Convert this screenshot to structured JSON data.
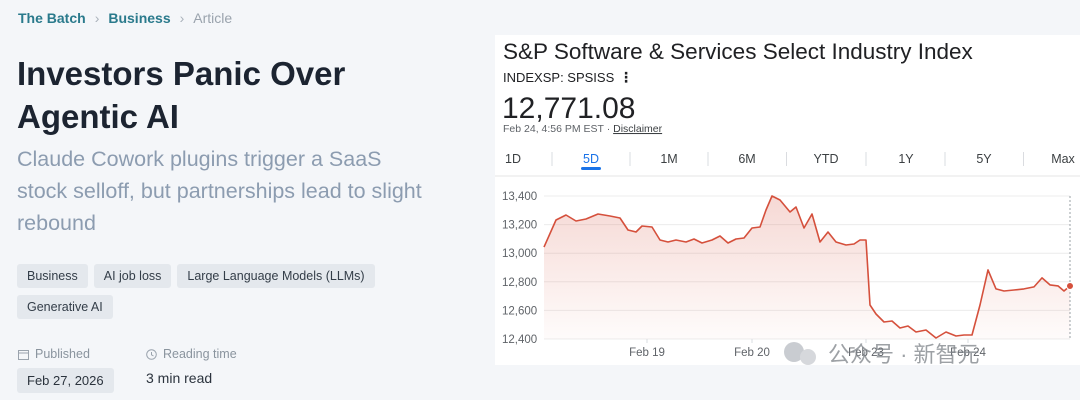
{
  "breadcrumb": [
    "The Batch",
    "Business",
    "Article"
  ],
  "article": {
    "title": "Investors Panic Over Agentic AI",
    "subtitle": "Claude Cowork plugins trigger a SaaS stock selloff, but partnerships lead to slight rebound",
    "tags": [
      "Business",
      "AI job loss",
      "Large Language Models (LLMs)",
      "Generative AI"
    ],
    "published_label": "Published",
    "published_date": "Feb 27, 2026",
    "reading_time_label": "Reading time",
    "reading_time": "3 min read"
  },
  "chart_data": {
    "type": "line",
    "title": "S&P Software & Services Select Industry Index",
    "ticker": "INDEXSP: SPSISS",
    "price": "12,771.08",
    "timestamp": "Feb 24, 4:56 PM EST · ",
    "disclaimer": "Disclaimer",
    "ranges": [
      "1D",
      "5D",
      "1M",
      "6M",
      "YTD",
      "1Y",
      "5Y",
      "Max"
    ],
    "color": "#d5503c",
    "x": [
      0,
      12,
      22,
      32,
      42,
      54,
      66,
      76,
      84,
      92,
      98,
      108,
      116,
      124,
      132,
      142,
      150,
      158,
      168,
      176,
      184,
      192,
      200,
      208,
      216,
      222,
      228,
      236,
      246,
      252,
      260,
      268,
      276,
      284,
      292,
      302,
      310,
      316,
      322,
      326,
      332,
      340,
      348,
      356,
      364,
      372,
      382,
      392,
      402,
      412,
      420,
      428,
      436,
      444,
      452,
      460,
      470,
      480,
      490,
      498,
      506,
      514,
      520,
      526
    ],
    "values": [
      13043,
      13232,
      13267,
      13225,
      13239,
      13274,
      13260,
      13246,
      13162,
      13148,
      13190,
      13183,
      13092,
      13078,
      13092,
      13078,
      13099,
      13071,
      13092,
      13120,
      13071,
      13099,
      13106,
      13176,
      13183,
      13302,
      13400,
      13372,
      13288,
      13323,
      13176,
      13274,
      13078,
      13148,
      13078,
      13057,
      13064,
      13092,
      13092,
      12638,
      12575,
      12519,
      12526,
      12477,
      12491,
      12449,
      12463,
      12407,
      12449,
      12421,
      12428,
      12428,
      12638,
      12883,
      12750,
      12736,
      12743,
      12750,
      12764,
      12827,
      12778,
      12771,
      12736,
      12771
    ],
    "xlim": [
      0,
      526
    ],
    "xticks": [
      {
        "value": 103,
        "label": "Feb 19"
      },
      {
        "value": 208,
        "label": "Feb 20"
      },
      {
        "value": 322,
        "label": "Feb 23"
      },
      {
        "value": 424,
        "label": "Feb 24"
      }
    ],
    "ylim": [
      12400,
      13400
    ],
    "yticks": [
      {
        "value": 12400,
        "label": "12,400"
      },
      {
        "value": 12600,
        "label": "12,600"
      },
      {
        "value": 12800,
        "label": "12,800"
      },
      {
        "value": 13000,
        "label": "13,000"
      },
      {
        "value": 13200,
        "label": "13,200"
      },
      {
        "value": 13400,
        "label": "13,400"
      }
    ],
    "grid": true
  },
  "watermark": "公众号 · 新智元"
}
